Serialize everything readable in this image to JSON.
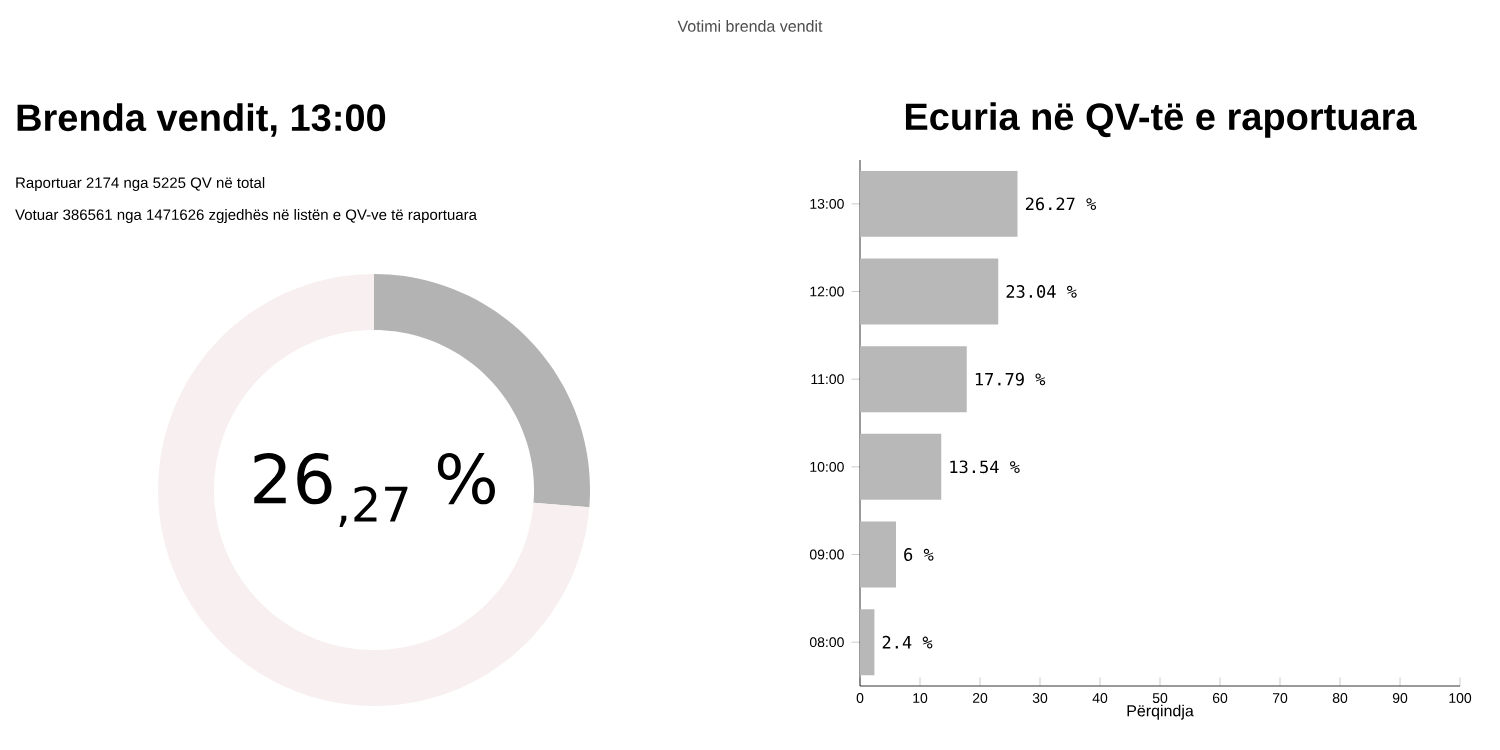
{
  "chart_data": [
    {
      "type": "donut",
      "subtitle": "Votimi brenda vendit",
      "title": "Brenda vendit, 13:00",
      "annotations": [
        "Raportuar 2174 nga 5225 QV në total",
        "Votuar 386561 nga 1471626 zgjedhës në listën e QV-ve të raportuara"
      ],
      "categories": [
        null,
        null
      ],
      "values": [
        26.27,
        73.73
      ],
      "colors": [
        "#b3b3b3",
        "#f8f0f0"
      ],
      "value_labels": [
        "26$_{,27}$ %",
        null
      ]
    },
    {
      "type": "bar",
      "orientation": "horizontal",
      "title": "Ecuria në QV-të e raportuara",
      "xlabel": "Përqindja",
      "categories": [
        "13:00",
        "12:00",
        "11:00",
        "10:00",
        "09:00",
        "08:00"
      ],
      "values": [
        26.27,
        23.04,
        17.79,
        13.54,
        6,
        2.4
      ],
      "value_labels": [
        "26.27 %",
        "23.04 %",
        "17.79 %",
        "13.54 %",
        "6 %",
        "2.4 %"
      ],
      "color": "#b8b8b8",
      "xlim": [
        0,
        100
      ],
      "xticks": [
        0,
        10,
        20,
        30,
        40,
        50,
        60,
        70,
        80,
        90,
        100
      ]
    }
  ]
}
